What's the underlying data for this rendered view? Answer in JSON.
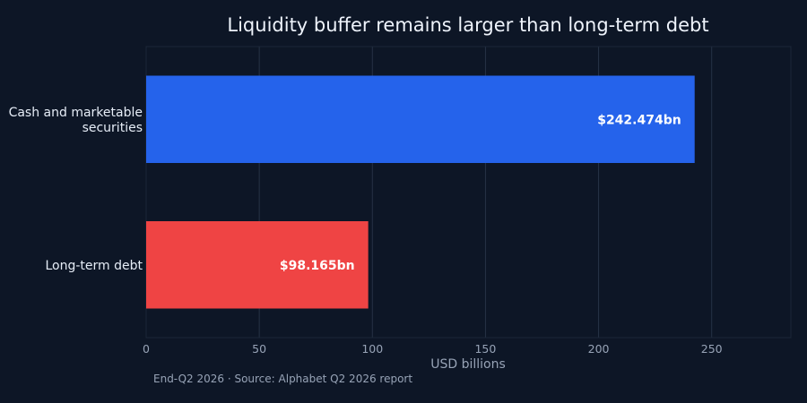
{
  "chart_data": {
    "type": "bar",
    "orientation": "horizontal",
    "title": "Liquidity buffer remains larger than long-term debt",
    "xlabel": "USD billions",
    "ylabel": "",
    "categories": [
      "Cash and marketable securities",
      "Long-term debt"
    ],
    "category_lines": [
      [
        "Cash and marketable",
        "securities"
      ],
      [
        "Long-term debt"
      ]
    ],
    "values": [
      242.474,
      98.165
    ],
    "value_labels": [
      "$242.474bn",
      "$98.165bn"
    ],
    "colors": [
      "#2563eb",
      "#ef4444"
    ],
    "xlim": [
      0,
      285
    ],
    "xticks": [
      0,
      50,
      100,
      150,
      200,
      250
    ],
    "grid": true,
    "source": "End-Q2 2026 · Source: Alphabet Q2 2026 report"
  }
}
